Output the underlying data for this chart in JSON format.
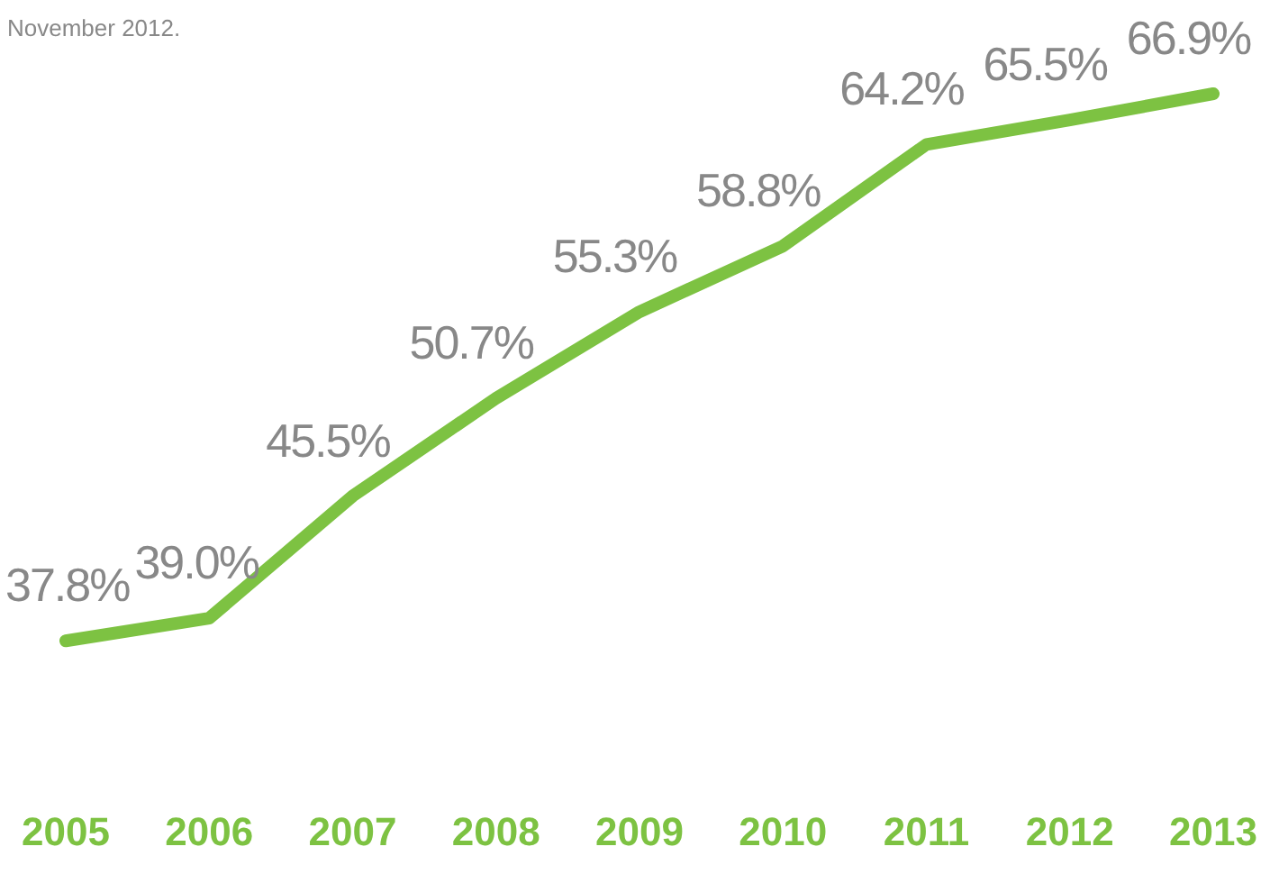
{
  "chart_data": {
    "type": "line",
    "categories": [
      "2005",
      "2006",
      "2007",
      "2008",
      "2009",
      "2010",
      "2011",
      "2012",
      "2013"
    ],
    "series": [
      {
        "color": "#7dc242",
        "values": [
          37.8,
          39.0,
          45.5,
          50.7,
          55.3,
          58.8,
          64.2,
          65.5,
          66.9
        ],
        "value_labels": [
          "37.8%",
          "39.0%",
          "45.5%",
          "50.7%",
          "55.3%",
          "58.8%",
          "64.2%",
          "65.5%",
          "66.9%"
        ]
      }
    ],
    "legend": false,
    "grid": false,
    "marker": "none",
    "line_style": "solid",
    "annotations": [
      "November 2012."
    ]
  }
}
